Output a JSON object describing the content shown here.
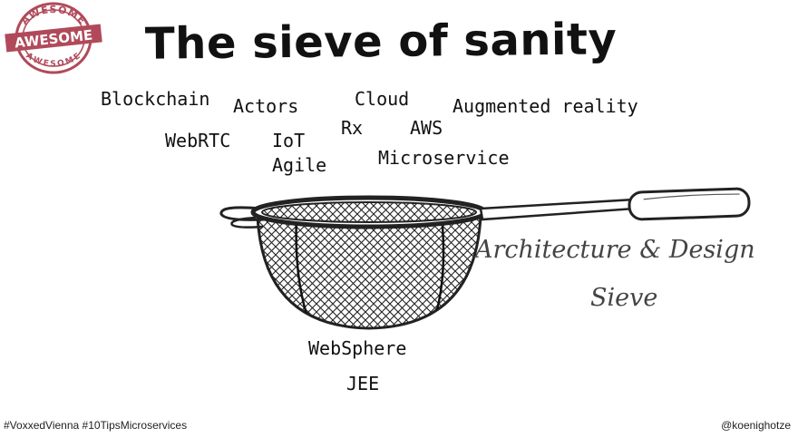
{
  "stamp": {
    "top_text": "AWESOME",
    "center_text": "AWESOME",
    "bottom_text": "AWESOME",
    "color": "#b04a5a"
  },
  "title": "The sieve of sanity",
  "buzzwords": {
    "blockchain": "Blockchain",
    "actors": "Actors",
    "cloud": "Cloud",
    "augmented_reality": "Augmented reality",
    "rx": "Rx",
    "aws": "AWS",
    "webrtc": "WebRTC",
    "iot": "IoT",
    "agile": "Agile",
    "microservice": "Microservice"
  },
  "sieve_label": {
    "line1": "Architecture & Design",
    "line2": "Sieve"
  },
  "filtered": {
    "websphere": "WebSphere",
    "jee": "JEE"
  },
  "footer": {
    "hashtags": "#VoxxedVienna #10TipsMicroservices",
    "handle": "@koenighotze"
  },
  "icons": {
    "sieve": "kitchen-sieve-icon",
    "stamp": "awesome-stamp-icon"
  }
}
